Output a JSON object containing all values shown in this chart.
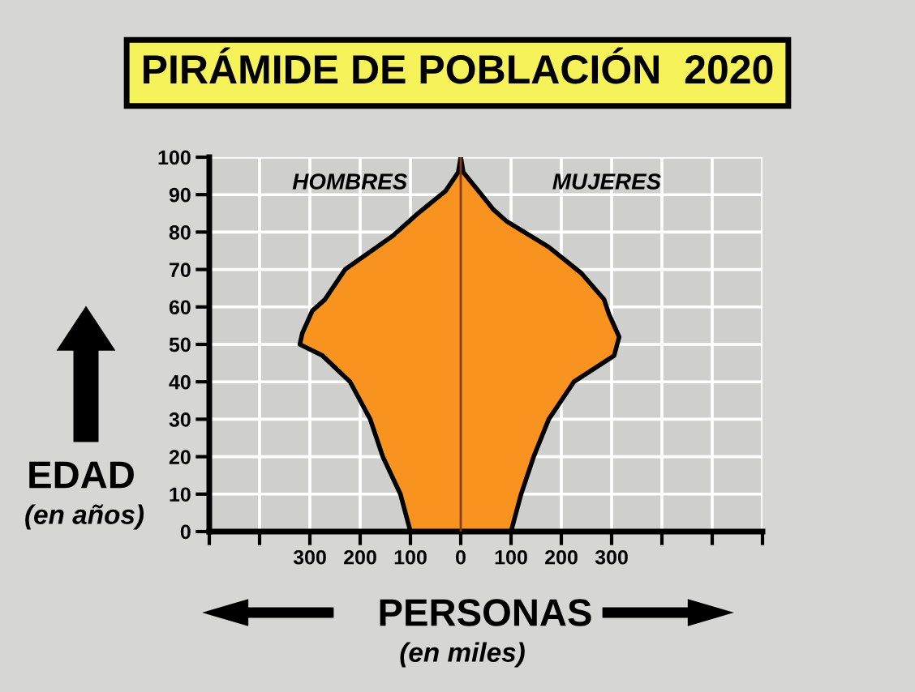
{
  "chart_data": {
    "type": "area",
    "orientation": "horizontal",
    "title": "PIRÁMIDE DE POBLACIÓN  2020",
    "xlabel": "PERSONAS",
    "ylabel": "EDAD",
    "annotations": [
      "(en miles)",
      "(en años)"
    ],
    "series": [
      {
        "name": "HOMBRES",
        "color": "#f7931e",
        "x": [
          0,
          10,
          20,
          30,
          40,
          47,
          50,
          53,
          59,
          62,
          70,
          79,
          85,
          91,
          96,
          100
        ],
        "values": [
          -100,
          -120,
          -155,
          -180,
          -220,
          -275,
          -320,
          -315,
          -295,
          -270,
          -230,
          -135,
          -85,
          -30,
          -5,
          0
        ]
      },
      {
        "name": "MUJERES",
        "color": "#f7931e",
        "x": [
          0,
          10,
          20,
          30,
          40,
          47,
          52,
          58,
          62,
          69,
          76,
          83,
          86,
          91,
          96,
          100
        ],
        "values": [
          100,
          120,
          145,
          175,
          225,
          305,
          315,
          295,
          285,
          240,
          175,
          90,
          65,
          35,
          5,
          0
        ]
      }
    ],
    "ref_lines": [
      {
        "axis": "x",
        "value": 0,
        "color": "#8a3a10"
      }
    ],
    "xlim": [
      -500,
      600
    ],
    "xticks": [
      {
        "value": -500,
        "label": null
      },
      {
        "value": -400,
        "label": null
      },
      {
        "value": -300,
        "label": "300"
      },
      {
        "value": -200,
        "label": "200"
      },
      {
        "value": -100,
        "label": "100"
      },
      0,
      100,
      200,
      300,
      {
        "value": 400,
        "label": null
      },
      {
        "value": 500,
        "label": null
      },
      {
        "value": 600,
        "label": null
      }
    ],
    "ylim": [
      0,
      100
    ],
    "yticks": [
      0,
      10,
      20,
      30,
      40,
      50,
      60,
      70,
      80,
      90,
      100
    ],
    "grid": true
  }
}
